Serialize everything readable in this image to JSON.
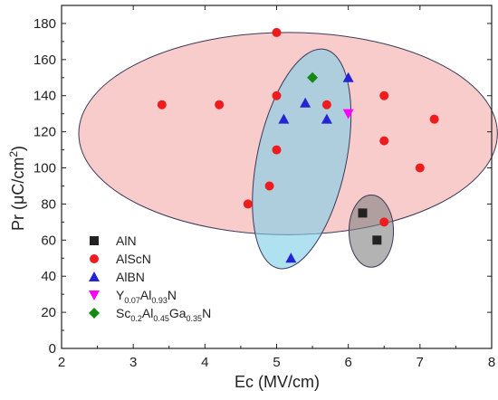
{
  "chart_data": {
    "type": "scatter",
    "title": "",
    "xlabel": "Ec (MV/cm)",
    "ylabel_main": "Pr (μC/cm",
    "ylabel_sup": "2",
    "ylabel_end": ")",
    "xlim": [
      2,
      8
    ],
    "ylim": [
      0,
      190
    ],
    "x_ticks": [
      2,
      3,
      4,
      5,
      6,
      7,
      8
    ],
    "y_ticks": [
      0,
      20,
      40,
      60,
      80,
      100,
      120,
      140,
      160,
      180
    ],
    "legend_position": "bottom-left",
    "series": [
      {
        "name": "AlN",
        "marker": "square",
        "color": "#222222",
        "points": [
          [
            6.2,
            75
          ],
          [
            6.4,
            60
          ]
        ]
      },
      {
        "name": "AlScN",
        "marker": "circle",
        "color": "#ee1c1c",
        "points": [
          [
            3.4,
            135
          ],
          [
            4.2,
            135
          ],
          [
            5.0,
            175
          ],
          [
            5.0,
            140
          ],
          [
            5.0,
            110
          ],
          [
            4.9,
            90
          ],
          [
            4.6,
            80
          ],
          [
            5.7,
            135
          ],
          [
            6.5,
            140
          ],
          [
            6.5,
            115
          ],
          [
            6.5,
            70
          ],
          [
            7.0,
            100
          ],
          [
            7.2,
            127
          ]
        ]
      },
      {
        "name": "AlBN",
        "marker": "triangle-up",
        "color": "#2424d4",
        "points": [
          [
            5.1,
            127
          ],
          [
            5.4,
            136
          ],
          [
            5.7,
            127
          ],
          [
            6.0,
            150
          ],
          [
            5.2,
            50
          ]
        ]
      },
      {
        "name": "Y0.07Al0.93N",
        "marker": "triangle-down",
        "color": "#ff00ff",
        "points": [
          [
            6.0,
            130
          ]
        ]
      },
      {
        "name": "Sc0.2Al0.45Ga0.35N",
        "marker": "diamond",
        "color": "#148a14",
        "points": [
          [
            5.5,
            150
          ]
        ]
      }
    ],
    "regions": [
      {
        "shape": "ellipse",
        "cx": 5.16,
        "cy": 119,
        "rx": 2.92,
        "ry": 56,
        "angle": 0,
        "fill": "#f4a3a3",
        "opacity": 0.55
      },
      {
        "shape": "ellipse",
        "cx": 5.35,
        "cy": 105,
        "rx": 0.62,
        "ry": 62,
        "angle": 12,
        "fill": "#7ccde8",
        "opacity": 0.6
      },
      {
        "shape": "ellipse",
        "cx": 6.32,
        "cy": 65,
        "rx": 0.31,
        "ry": 20,
        "angle": 0,
        "fill": "#808080",
        "opacity": 0.6
      }
    ],
    "legend": [
      {
        "label": "AlN",
        "sub": []
      },
      {
        "label": "AlScN",
        "sub": []
      },
      {
        "label": "AlBN",
        "sub": []
      },
      {
        "label": "",
        "sub": [
          [
            "Y",
            ""
          ],
          [
            "0.07",
            "sub"
          ],
          [
            "Al",
            ""
          ],
          [
            "0.93",
            "sub"
          ],
          [
            "N",
            ""
          ]
        ]
      },
      {
        "label": "",
        "sub": [
          [
            "Sc",
            ""
          ],
          [
            "0.2",
            "sub"
          ],
          [
            "Al",
            ""
          ],
          [
            "0.45",
            "sub"
          ],
          [
            "Ga",
            ""
          ],
          [
            "0.35",
            "sub"
          ],
          [
            "N",
            ""
          ]
        ]
      }
    ]
  }
}
